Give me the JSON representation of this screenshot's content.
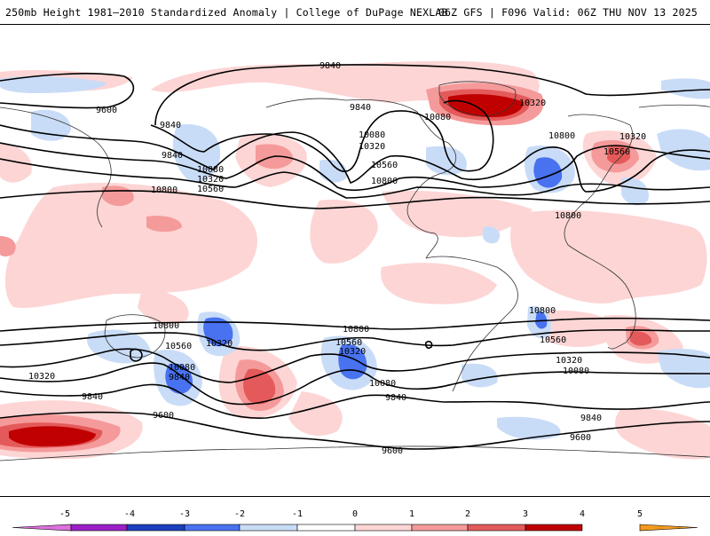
{
  "header": {
    "title": "250mb Height 1981–2010 Standardized Anomaly | College of DuPage NEXLAB",
    "run_info": "06Z GFS | F096 Valid: 06Z THU NOV 13 2025"
  },
  "contour_labels": [
    "9840",
    "9600",
    "9840",
    "9840",
    "10080",
    "10320",
    "10560",
    "10800",
    "9840",
    "10080",
    "10320",
    "10560",
    "10800",
    "10080",
    "10320",
    "10800",
    "10560",
    "10320",
    "10800",
    "10800",
    "10560",
    "10320",
    "9840",
    "10800",
    "10560",
    "10320",
    "10080",
    "9840",
    "10800",
    "10560",
    "10320",
    "10080",
    "9840",
    "9600",
    "9600",
    "10320",
    "10080",
    "9840",
    "9600",
    "10800",
    "10560"
  ],
  "colorbar": {
    "tick_labels": [
      "-5",
      "-4",
      "-3",
      "-2",
      "-1",
      "0",
      "1",
      "2",
      "3",
      "4",
      "5"
    ],
    "colors": {
      "m5": "#e070e0",
      "m4": "#9b1fc9",
      "m3": "#1c3fbf",
      "m2": "#4872f0",
      "m1": "#c9dcf7",
      "zero": "#ffffff",
      "p1": "#fdd5d5",
      "p2": "#f59a9a",
      "p3": "#e45a5a",
      "p4": "#c00000",
      "p5": "#f39a1d"
    }
  }
}
